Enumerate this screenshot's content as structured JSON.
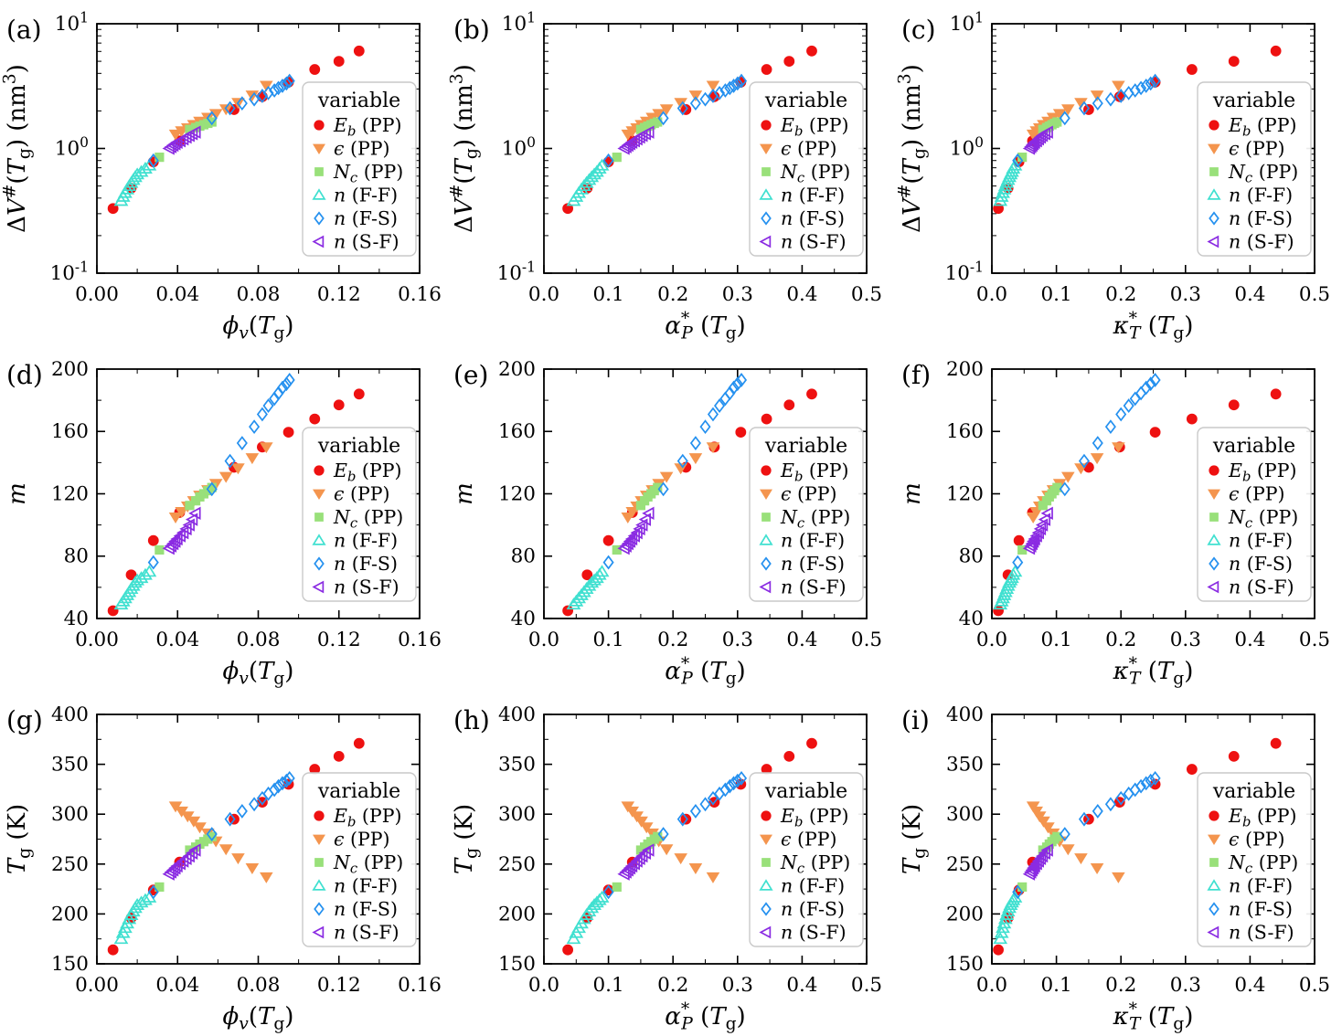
{
  "figure": {
    "background": "#ffffff",
    "text_color": "#000000",
    "axis_color": "#000000"
  },
  "legend": {
    "title": "variable",
    "box": {
      "border_color": "#c9c9c9",
      "fill": "#ffffff",
      "radius": 7
    }
  },
  "chart_data": {
    "type": "scatter",
    "grid": false,
    "legend_position": "center-right",
    "panels": [
      {
        "id": "a",
        "label": "(a)",
        "x": "phi",
        "y": "dV"
      },
      {
        "id": "b",
        "label": "(b)",
        "x": "alpha",
        "y": "dV"
      },
      {
        "id": "c",
        "label": "(c)",
        "x": "kappa",
        "y": "dV"
      },
      {
        "id": "d",
        "label": "(d)",
        "x": "phi",
        "y": "m"
      },
      {
        "id": "e",
        "label": "(e)",
        "x": "alpha",
        "y": "m"
      },
      {
        "id": "f",
        "label": "(f)",
        "x": "kappa",
        "y": "m"
      },
      {
        "id": "g",
        "label": "(g)",
        "x": "phi",
        "y": "Tg"
      },
      {
        "id": "h",
        "label": "(h)",
        "x": "alpha",
        "y": "Tg"
      },
      {
        "id": "i",
        "label": "(i)",
        "x": "kappa",
        "y": "Tg"
      }
    ],
    "x_axes": {
      "phi": {
        "label_segments": [
          {
            "t": "ϕ",
            "i": 1
          },
          {
            "t": "v",
            "i": 1,
            "p": "sub"
          },
          {
            "t": "("
          },
          {
            "t": "T",
            "i": 1
          },
          {
            "t": "g",
            "p": "sub"
          },
          {
            "t": ")"
          }
        ],
        "range": [
          0,
          0.16
        ],
        "majors": [
          0,
          0.04,
          0.08,
          0.12,
          0.16
        ],
        "major_labels": [
          "0.00",
          "0.04",
          "0.08",
          "0.12",
          "0.16"
        ],
        "minors": [
          0.02,
          0.06,
          0.1,
          0.14
        ]
      },
      "alpha": {
        "label_segments": [
          {
            "t": "α",
            "i": 1
          },
          {
            "t": "*",
            "p": "sup"
          },
          {
            "t": "P",
            "i": 1,
            "p": "sub",
            "dx": -9
          },
          {
            "t": " ("
          },
          {
            "t": "T",
            "i": 1
          },
          {
            "t": "g",
            "p": "sub"
          },
          {
            "t": ")"
          }
        ],
        "range": [
          0,
          0.5
        ],
        "majors": [
          0,
          0.1,
          0.2,
          0.3,
          0.4,
          0.5
        ],
        "major_labels": [
          "0.0",
          "0.1",
          "0.2",
          "0.3",
          "0.4",
          "0.5"
        ],
        "minors": [
          0.05,
          0.15,
          0.25,
          0.35,
          0.45
        ]
      },
      "kappa": {
        "label_segments": [
          {
            "t": "κ",
            "i": 1
          },
          {
            "t": "*",
            "p": "sup"
          },
          {
            "t": "T",
            "i": 1,
            "p": "sub",
            "dx": -9
          },
          {
            "t": " ("
          },
          {
            "t": "T",
            "i": 1
          },
          {
            "t": "g",
            "p": "sub"
          },
          {
            "t": ")"
          }
        ],
        "range": [
          0,
          0.5
        ],
        "majors": [
          0,
          0.1,
          0.2,
          0.3,
          0.4,
          0.5
        ],
        "major_labels": [
          "0.0",
          "0.1",
          "0.2",
          "0.3",
          "0.4",
          "0.5"
        ],
        "minors": [
          0.05,
          0.15,
          0.25,
          0.35,
          0.45
        ]
      }
    },
    "y_axes": {
      "dV": {
        "scale": "log",
        "label_segments": [
          {
            "t": "Δ"
          },
          {
            "t": "V",
            "i": 1
          },
          {
            "t": "#",
            "p": "sup"
          },
          {
            "t": "("
          },
          {
            "t": "T",
            "i": 1
          },
          {
            "t": "g",
            "p": "sub"
          },
          {
            "t": ") (nm"
          },
          {
            "t": "3",
            "p": "sup"
          },
          {
            "t": ")"
          }
        ],
        "range": [
          0.1,
          10
        ],
        "majors": [
          0.1,
          1,
          10
        ],
        "major_label_segments": [
          [
            {
              "t": "10"
            },
            {
              "t": "-1",
              "p": "sup"
            }
          ],
          [
            {
              "t": "10"
            },
            {
              "t": "0",
              "p": "sup"
            }
          ],
          [
            {
              "t": "10"
            },
            {
              "t": "1",
              "p": "sup"
            }
          ]
        ],
        "minors": [
          0.2,
          0.3,
          0.4,
          0.5,
          0.6,
          0.7,
          0.8,
          0.9,
          2,
          3,
          4,
          5,
          6,
          7,
          8,
          9
        ]
      },
      "m": {
        "scale": "linear",
        "label_segments": [
          {
            "t": "m",
            "i": 1
          }
        ],
        "range": [
          40,
          200
        ],
        "majors": [
          40,
          80,
          120,
          160,
          200
        ],
        "major_labels": [
          "40",
          "80",
          "120",
          "160",
          "200"
        ],
        "minors": [
          60,
          100,
          140,
          180
        ]
      },
      "Tg": {
        "scale": "linear",
        "label_segments": [
          {
            "t": "T",
            "i": 1
          },
          {
            "t": "g",
            "p": "sub"
          },
          {
            "t": " (K)"
          }
        ],
        "range": [
          150,
          400
        ],
        "majors": [
          150,
          200,
          250,
          300,
          350,
          400
        ],
        "major_labels": [
          "150",
          "200",
          "250",
          "300",
          "350",
          "400"
        ],
        "minors": [
          175,
          225,
          275,
          325,
          375
        ]
      }
    },
    "series": [
      {
        "name": "Eb (PP)",
        "legend_segments": [
          {
            "t": "E",
            "i": 1
          },
          {
            "t": "b",
            "i": 1,
            "p": "sub"
          },
          {
            "t": " (PP)"
          }
        ],
        "marker": "circle",
        "color": "#ee1111",
        "filled": true,
        "size": 5.4,
        "x": {
          "phi": [
            0.008,
            0.017,
            0.028,
            0.041,
            0.068,
            0.082,
            0.095,
            0.108,
            0.12,
            0.13
          ],
          "alpha": [
            0.037,
            0.067,
            0.1,
            0.137,
            0.22,
            0.264,
            0.305,
            0.345,
            0.38,
            0.415
          ],
          "kappa": [
            0.01,
            0.025,
            0.042,
            0.063,
            0.15,
            0.198,
            0.253,
            0.31,
            0.375,
            0.44
          ]
        },
        "y": {
          "dV": [
            0.33,
            0.48,
            0.78,
            1.15,
            2.05,
            2.6,
            3.4,
            4.3,
            5.0,
            6.05
          ],
          "m": [
            45,
            68,
            90,
            108,
            137,
            150,
            159.5,
            168,
            177,
            184
          ],
          "Tg": [
            164,
            196,
            224,
            252,
            295,
            312,
            330,
            345,
            358,
            371
          ]
        }
      },
      {
        "name": "eps (PP)",
        "legend_segments": [
          {
            "t": "ϵ",
            "i": 1
          },
          {
            "t": " (PP)"
          }
        ],
        "marker": "triangle-down",
        "color": "#f4954e",
        "filled": true,
        "size": 6.4,
        "x": {
          "phi": [
            0.039,
            0.042,
            0.045,
            0.048,
            0.051,
            0.055,
            0.059,
            0.064,
            0.07,
            0.077,
            0.084
          ],
          "alpha": [
            0.13,
            0.137,
            0.144,
            0.151,
            0.159,
            0.168,
            0.178,
            0.19,
            0.212,
            0.235,
            0.262
          ],
          "kappa": [
            0.064,
            0.069,
            0.074,
            0.08,
            0.087,
            0.095,
            0.105,
            0.118,
            0.138,
            0.163,
            0.196
          ]
        },
        "y": {
          "dV": [
            1.3,
            1.38,
            1.46,
            1.55,
            1.65,
            1.77,
            1.9,
            2.07,
            2.33,
            2.67,
            3.2
          ],
          "m": [
            105,
            108.5,
            112,
            115.5,
            119,
            122.5,
            126.5,
            131,
            136.5,
            143,
            150
          ],
          "Tg": [
            308,
            303,
            298,
            293,
            287,
            281,
            273,
            265,
            256,
            246,
            237
          ]
        }
      },
      {
        "name": "Nc (PP)",
        "legend_segments": [
          {
            "t": "N",
            "i": 1
          },
          {
            "t": "c",
            "i": 1,
            "p": "sub"
          },
          {
            "t": " (PP)"
          }
        ],
        "marker": "square",
        "color": "#99e07a",
        "filled": true,
        "size": 4.6,
        "x": {
          "phi": [
            0.031,
            0.046,
            0.049,
            0.051,
            0.053,
            0.055,
            0.057
          ],
          "alpha": [
            0.113,
            0.15,
            0.156,
            0.161,
            0.166,
            0.171,
            0.176
          ],
          "kappa": [
            0.047,
            0.079,
            0.085,
            0.089,
            0.093,
            0.097,
            0.101
          ]
        },
        "y": {
          "dV": [
            0.85,
            1.42,
            1.47,
            1.51,
            1.55,
            1.59,
            1.63
          ],
          "m": [
            84,
            112.5,
            115.5,
            118,
            120,
            122,
            124
          ],
          "Tg": [
            227,
            264,
            267,
            270,
            272.5,
            275,
            277.5
          ]
        }
      },
      {
        "name": "n (F-F)",
        "legend_segments": [
          {
            "t": "n",
            "i": 1
          },
          {
            "t": " (F-F)"
          }
        ],
        "marker": "triangle-up",
        "color": "#40e0d0",
        "filled": false,
        "size": 6.4,
        "x": {
          "phi": [
            0.012,
            0.013,
            0.014,
            0.015,
            0.016,
            0.017,
            0.018,
            0.019,
            0.02,
            0.022,
            0.024,
            0.026
          ],
          "alpha": [
            0.046,
            0.05,
            0.054,
            0.058,
            0.062,
            0.066,
            0.07,
            0.074,
            0.078,
            0.082,
            0.086,
            0.09
          ],
          "kappa": [
            0.013,
            0.015,
            0.017,
            0.019,
            0.021,
            0.023,
            0.025,
            0.027,
            0.029,
            0.031,
            0.033,
            0.036
          ]
        },
        "y": {
          "dV": [
            0.38,
            0.41,
            0.44,
            0.47,
            0.5,
            0.53,
            0.56,
            0.59,
            0.62,
            0.65,
            0.69,
            0.73
          ],
          "m": [
            49,
            51,
            53,
            55,
            57,
            59,
            61,
            63,
            64.5,
            66,
            68,
            70
          ],
          "Tg": [
            175,
            181,
            186,
            190.5,
            195,
            199,
            202.5,
            206,
            209,
            211.5,
            214,
            216.5
          ]
        }
      },
      {
        "name": "n (F-S)",
        "legend_segments": [
          {
            "t": "n",
            "i": 1
          },
          {
            "t": " (F-S)"
          }
        ],
        "marker": "diamond",
        "color": "#2490ef",
        "filled": false,
        "size": 6.2,
        "x": {
          "phi": [
            0.028,
            0.057,
            0.066,
            0.072,
            0.078,
            0.082,
            0.085,
            0.088,
            0.09,
            0.092,
            0.094,
            0.0955
          ],
          "alpha": [
            0.1,
            0.185,
            0.215,
            0.235,
            0.25,
            0.262,
            0.272,
            0.281,
            0.288,
            0.294,
            0.3,
            0.306
          ],
          "kappa": [
            0.04,
            0.113,
            0.143,
            0.164,
            0.184,
            0.2,
            0.212,
            0.222,
            0.231,
            0.239,
            0.246,
            0.253
          ]
        },
        "y": {
          "dV": [
            0.8,
            1.75,
            2.1,
            2.3,
            2.48,
            2.64,
            2.78,
            2.92,
            3.05,
            3.18,
            3.32,
            3.48
          ],
          "m": [
            76,
            123,
            141,
            152.5,
            163,
            171,
            176.5,
            181,
            184.5,
            188,
            190.5,
            193
          ],
          "Tg": [
            222,
            280,
            295,
            303,
            310,
            316,
            320.5,
            324.5,
            328,
            331,
            333.5,
            336
          ]
        }
      },
      {
        "name": "n (S-F)",
        "legend_segments": [
          {
            "t": "n",
            "i": 1
          },
          {
            "t": " (S-F)"
          }
        ],
        "marker": "triangle-left",
        "color": "#8a2be2",
        "filled": false,
        "size": 6.4,
        "x": {
          "phi": [
            0.036,
            0.037,
            0.038,
            0.039,
            0.04,
            0.0415,
            0.043,
            0.0445,
            0.046,
            0.0475,
            0.049
          ],
          "alpha": [
            0.125,
            0.128,
            0.131,
            0.134,
            0.137,
            0.141,
            0.145,
            0.149,
            0.153,
            0.158,
            0.163
          ],
          "kappa": [
            0.059,
            0.061,
            0.063,
            0.065,
            0.067,
            0.07,
            0.073,
            0.076,
            0.079,
            0.083,
            0.087
          ]
        },
        "y": {
          "dV": [
            1.0,
            1.03,
            1.06,
            1.09,
            1.12,
            1.15,
            1.19,
            1.23,
            1.27,
            1.31,
            1.35
          ],
          "m": [
            85,
            86.5,
            88,
            89.5,
            91,
            93,
            95,
            97.5,
            100,
            103.5,
            107.5
          ],
          "Tg": [
            240,
            242,
            244,
            246,
            248,
            250.5,
            253,
            255.5,
            258,
            261,
            264
          ]
        }
      }
    ]
  }
}
